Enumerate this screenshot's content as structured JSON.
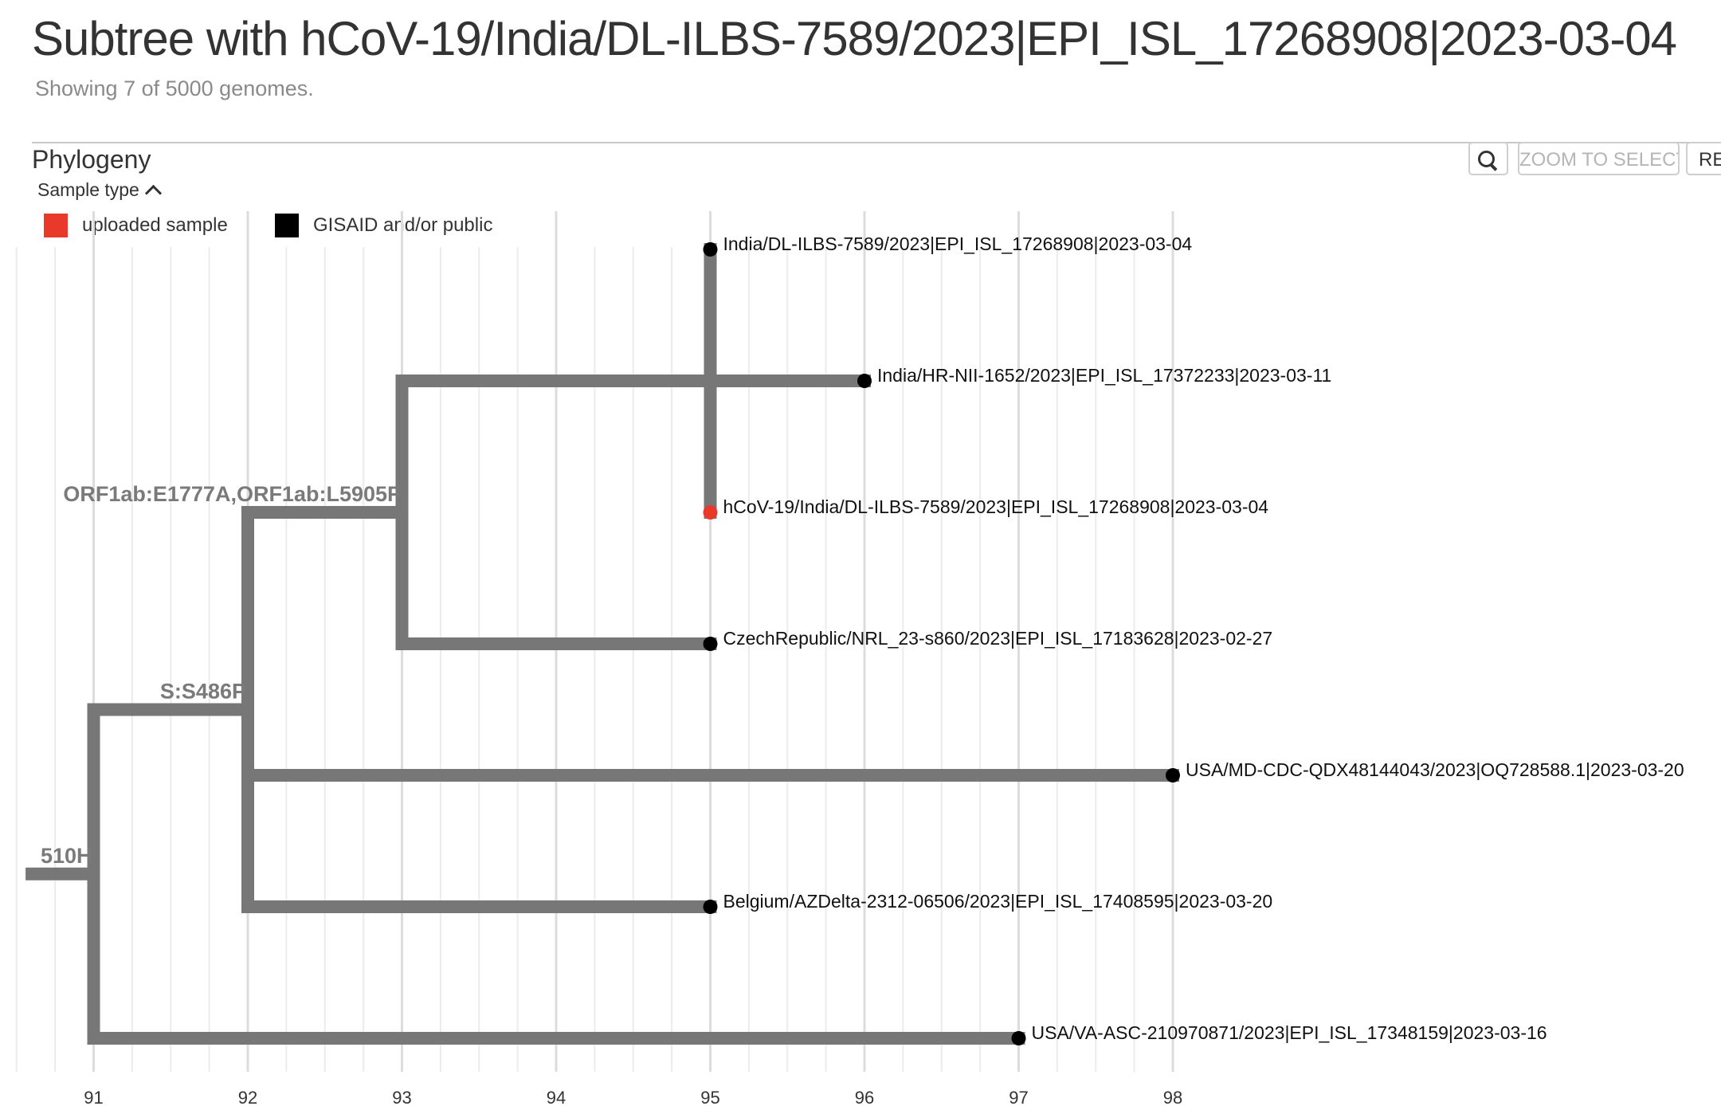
{
  "header": {
    "title": "Subtree with hCoV-19/India/DL-ILBS-7589/2023|EPI_ISL_17268908|2023-03-04",
    "subtitle": "Showing 7 of 5000 genomes."
  },
  "panel": {
    "title": "Phylogeny",
    "zoom_selected_label": "ZOOM TO SELECTED",
    "reset_label": "RE"
  },
  "legend": {
    "toggle_label": "Sample type",
    "items": [
      {
        "label": "uploaded sample",
        "color": "#e8392a"
      },
      {
        "label": "GISAID and/or public",
        "color": "#000000"
      }
    ]
  },
  "colors": {
    "branch": "#777777",
    "grid": "#e3e3e3",
    "uploaded": "#e8392a",
    "public": "#000000"
  },
  "chart_data": {
    "type": "phylogenetic-tree",
    "x_ticks": [
      91,
      92,
      93,
      94,
      95,
      96,
      97,
      98
    ],
    "xlim": [
      90.6,
      100.2
    ],
    "internal_nodes": [
      {
        "id": "root",
        "x": 90.6,
        "parent": null
      },
      {
        "id": "n1",
        "x": 91,
        "parent": "root",
        "mutation": "510H"
      },
      {
        "id": "n2",
        "x": 92,
        "parent": "n1",
        "mutation": "S:S486P"
      },
      {
        "id": "n3",
        "x": 93,
        "parent": "n2",
        "mutation": "ORF1ab:E1777A,ORF1ab:L5905F"
      },
      {
        "id": "n4",
        "x": 95,
        "parent": "n3",
        "mutation": ""
      }
    ],
    "tips": [
      {
        "label": "India/DL-ILBS-7589/2023|EPI_ISL_17268908|2023-03-04",
        "x": 95,
        "parent": "n4",
        "type": "public"
      },
      {
        "label": "India/HR-NII-1652/2023|EPI_ISL_17372233|2023-03-11",
        "x": 96,
        "parent": "n3",
        "type": "public"
      },
      {
        "label": "hCoV-19/India/DL-ILBS-7589/2023|EPI_ISL_17268908|2023-03-04",
        "x": 95,
        "parent": "n4",
        "type": "uploaded"
      },
      {
        "label": "CzechRepublic/NRL_23-s860/2023|EPI_ISL_17183628|2023-02-27",
        "x": 95,
        "parent": "n3",
        "type": "public"
      },
      {
        "label": "USA/MD-CDC-QDX48144043/2023|OQ728588.1|2023-03-20",
        "x": 98,
        "parent": "n2",
        "type": "public"
      },
      {
        "label": "Belgium/AZDelta-2312-06506/2023|EPI_ISL_17408595|2023-03-20",
        "x": 95,
        "parent": "n2",
        "type": "public"
      },
      {
        "label": "USA/VA-ASC-210970871/2023|EPI_ISL_17348159|2023-03-16",
        "x": 97,
        "parent": "n1",
        "type": "public"
      }
    ]
  }
}
